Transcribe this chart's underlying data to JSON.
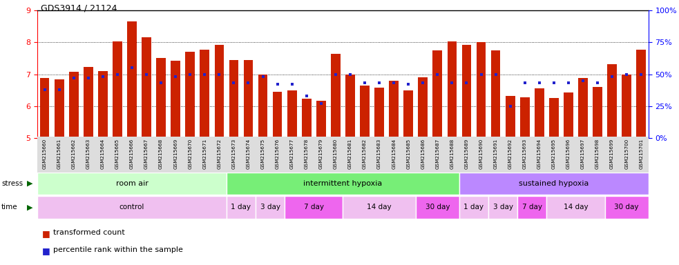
{
  "title": "GDS3914 / 21124",
  "samples": [
    "GSM215660",
    "GSM215661",
    "GSM215662",
    "GSM215663",
    "GSM215664",
    "GSM215665",
    "GSM215666",
    "GSM215667",
    "GSM215668",
    "GSM215669",
    "GSM215670",
    "GSM215671",
    "GSM215672",
    "GSM215673",
    "GSM215674",
    "GSM215675",
    "GSM215676",
    "GSM215677",
    "GSM215678",
    "GSM215679",
    "GSM215680",
    "GSM215681",
    "GSM215682",
    "GSM215683",
    "GSM215684",
    "GSM215685",
    "GSM215686",
    "GSM215687",
    "GSM215688",
    "GSM215689",
    "GSM215690",
    "GSM215691",
    "GSM215692",
    "GSM215693",
    "GSM215694",
    "GSM215695",
    "GSM215696",
    "GSM215697",
    "GSM215698",
    "GSM215699",
    "GSM215700",
    "GSM215701"
  ],
  "bar_values": [
    6.88,
    6.83,
    7.08,
    7.22,
    7.1,
    8.03,
    8.65,
    8.16,
    7.52,
    7.42,
    7.7,
    7.77,
    7.93,
    7.45,
    7.45,
    7.0,
    6.45,
    6.5,
    6.22,
    6.16,
    7.65,
    7.0,
    6.65,
    6.58,
    6.8,
    6.5,
    6.9,
    7.75,
    8.03,
    7.93,
    8.0,
    7.75,
    6.32,
    6.28,
    6.55,
    6.25,
    6.42,
    6.88,
    6.6,
    7.32,
    6.98,
    7.78
  ],
  "percentile_values": [
    38,
    38,
    47,
    47,
    48,
    50,
    55,
    50,
    43,
    48,
    50,
    50,
    50,
    43,
    43,
    48,
    42,
    42,
    33,
    27,
    50,
    50,
    43,
    43,
    43,
    42,
    43,
    50,
    43,
    43,
    50,
    50,
    25,
    43,
    43,
    43,
    43,
    45,
    43,
    48,
    50,
    50
  ],
  "ylim_left": [
    5,
    9
  ],
  "ylim_right": [
    0,
    100
  ],
  "yticks_left": [
    5,
    6,
    7,
    8,
    9
  ],
  "yticks_right": [
    0,
    25,
    50,
    75,
    100
  ],
  "bar_color": "#cc2200",
  "dot_color": "#2222cc",
  "bar_bottom": 5.0,
  "stress_groups": [
    {
      "label": "room air",
      "start": 0,
      "end": 13,
      "color": "#ccffcc"
    },
    {
      "label": "intermittent hypoxia",
      "start": 13,
      "end": 29,
      "color": "#77ee77"
    },
    {
      "label": "sustained hypoxia",
      "start": 29,
      "end": 42,
      "color": "#bb88ff"
    }
  ],
  "time_groups": [
    {
      "label": "control",
      "start": 0,
      "end": 13,
      "color": "#f0c0f0"
    },
    {
      "label": "1 day",
      "start": 13,
      "end": 15,
      "color": "#f0c0f0"
    },
    {
      "label": "3 day",
      "start": 15,
      "end": 17,
      "color": "#f0c0f0"
    },
    {
      "label": "7 day",
      "start": 17,
      "end": 21,
      "color": "#ee66ee"
    },
    {
      "label": "14 day",
      "start": 21,
      "end": 26,
      "color": "#f0c0f0"
    },
    {
      "label": "30 day",
      "start": 26,
      "end": 29,
      "color": "#ee66ee"
    },
    {
      "label": "1 day",
      "start": 29,
      "end": 31,
      "color": "#f0c0f0"
    },
    {
      "label": "3 day",
      "start": 31,
      "end": 33,
      "color": "#f0c0f0"
    },
    {
      "label": "7 day",
      "start": 33,
      "end": 35,
      "color": "#ee66ee"
    },
    {
      "label": "14 day",
      "start": 35,
      "end": 39,
      "color": "#f0c0f0"
    },
    {
      "label": "30 day",
      "start": 39,
      "end": 42,
      "color": "#ee66ee"
    }
  ],
  "fig_width": 9.83,
  "fig_height": 3.84,
  "dpi": 100
}
